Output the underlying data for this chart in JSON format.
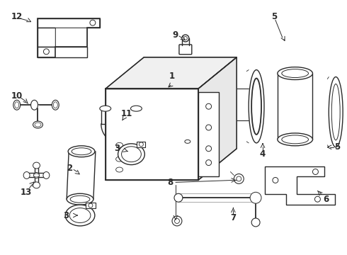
{
  "background_color": "#ffffff",
  "line_color": "#2a2a2a",
  "line_width": 1.0,
  "label_fontsize": 8.5,
  "figsize": [
    4.9,
    3.6
  ],
  "dpi": 100
}
